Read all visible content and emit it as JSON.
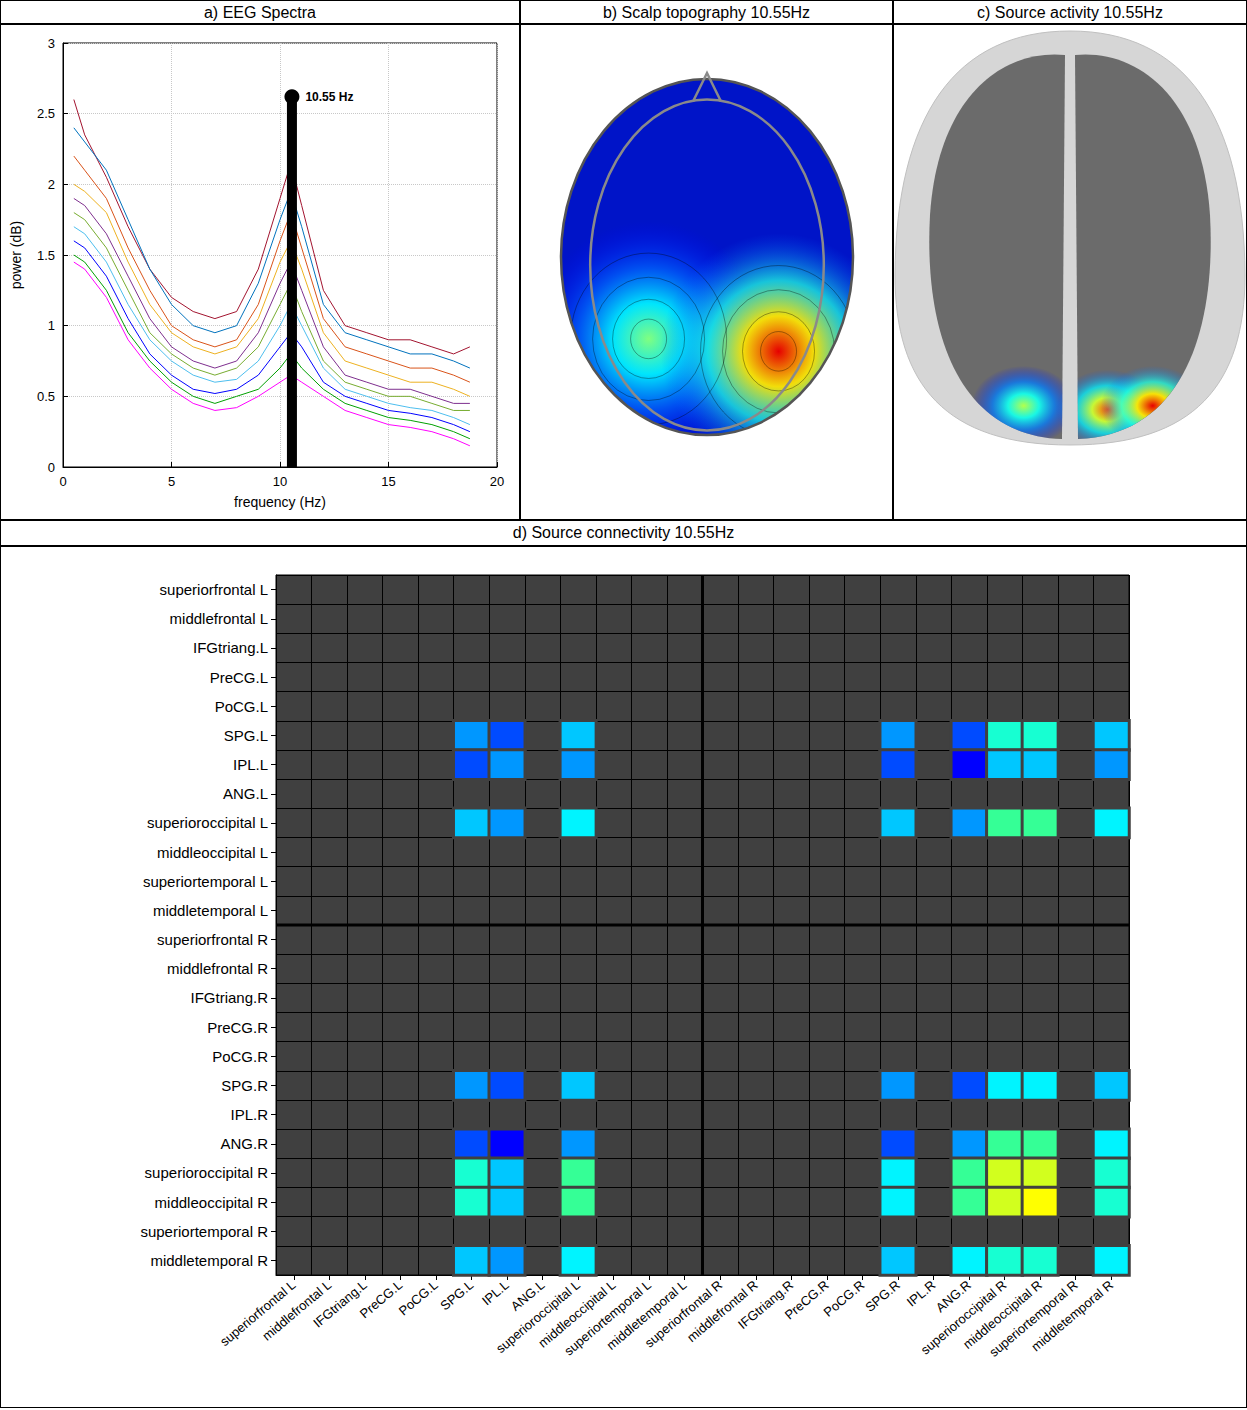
{
  "chart_data": [
    {
      "type": "line",
      "title": "a) EEG Spectra",
      "xlabel": "frequency (Hz)",
      "ylabel": "power (dB)",
      "x": [
        0.5,
        1,
        2,
        3,
        4,
        5,
        6,
        7,
        8,
        9,
        10,
        10.5,
        11,
        12,
        13,
        14,
        15,
        16,
        17,
        18,
        18.75
      ],
      "series": [
        {
          "color": "#a2142f",
          "values": [
            2.6,
            2.35,
            2.05,
            1.7,
            1.4,
            1.2,
            1.1,
            1.05,
            1.1,
            1.4,
            1.9,
            2.15,
            1.85,
            1.25,
            1.0,
            0.95,
            0.9,
            0.9,
            0.85,
            0.8,
            0.85
          ]
        },
        {
          "color": "#0072bd",
          "values": [
            2.4,
            2.3,
            2.1,
            1.75,
            1.4,
            1.15,
            1.0,
            0.95,
            1.0,
            1.3,
            1.75,
            1.95,
            1.7,
            1.15,
            0.95,
            0.9,
            0.85,
            0.8,
            0.8,
            0.75,
            0.7
          ]
        },
        {
          "color": "#d95319",
          "values": [
            2.2,
            2.1,
            1.9,
            1.55,
            1.25,
            1.0,
            0.9,
            0.85,
            0.9,
            1.15,
            1.6,
            1.8,
            1.55,
            1.05,
            0.85,
            0.8,
            0.75,
            0.7,
            0.7,
            0.65,
            0.6
          ]
        },
        {
          "color": "#edb120",
          "values": [
            2.0,
            1.95,
            1.8,
            1.45,
            1.15,
            0.95,
            0.85,
            0.8,
            0.85,
            1.05,
            1.45,
            1.6,
            1.4,
            0.95,
            0.75,
            0.7,
            0.65,
            0.6,
            0.6,
            0.55,
            0.5
          ]
        },
        {
          "color": "#7e2f8e",
          "values": [
            1.9,
            1.85,
            1.65,
            1.35,
            1.05,
            0.85,
            0.75,
            0.7,
            0.75,
            0.95,
            1.3,
            1.45,
            1.25,
            0.85,
            0.65,
            0.6,
            0.55,
            0.55,
            0.5,
            0.45,
            0.45
          ]
        },
        {
          "color": "#77ac30",
          "values": [
            1.8,
            1.75,
            1.55,
            1.25,
            0.95,
            0.8,
            0.7,
            0.65,
            0.7,
            0.85,
            1.15,
            1.3,
            1.1,
            0.75,
            0.6,
            0.55,
            0.5,
            0.5,
            0.45,
            0.4,
            0.4
          ]
        },
        {
          "color": "#4dbeee",
          "values": [
            1.7,
            1.65,
            1.45,
            1.15,
            0.9,
            0.75,
            0.65,
            0.6,
            0.62,
            0.75,
            1.0,
            1.15,
            1.0,
            0.7,
            0.55,
            0.5,
            0.45,
            0.42,
            0.4,
            0.35,
            0.3
          ]
        },
        {
          "color": "#0000ff",
          "values": [
            1.6,
            1.55,
            1.35,
            1.05,
            0.8,
            0.65,
            0.55,
            0.52,
            0.55,
            0.65,
            0.85,
            0.95,
            0.85,
            0.6,
            0.5,
            0.45,
            0.4,
            0.38,
            0.35,
            0.3,
            0.25
          ]
        },
        {
          "color": "#00a000",
          "values": [
            1.5,
            1.45,
            1.25,
            0.95,
            0.75,
            0.6,
            0.5,
            0.45,
            0.5,
            0.55,
            0.7,
            0.8,
            0.7,
            0.55,
            0.45,
            0.4,
            0.35,
            0.33,
            0.3,
            0.25,
            0.2
          ]
        },
        {
          "color": "#ff00ff",
          "values": [
            1.45,
            1.4,
            1.2,
            0.9,
            0.7,
            0.55,
            0.45,
            0.4,
            0.42,
            0.5,
            0.6,
            0.65,
            0.6,
            0.5,
            0.4,
            0.35,
            0.3,
            0.28,
            0.25,
            0.2,
            0.15
          ]
        }
      ],
      "xlim": [
        0,
        20
      ],
      "xticks": [
        0,
        5,
        10,
        15,
        20
      ],
      "ylim": [
        0,
        3
      ],
      "yticks": [
        0,
        0.5,
        1,
        1.5,
        2,
        2.5,
        3
      ],
      "grid": true,
      "annotations": [
        {
          "x": 10.55,
          "y": 2.62,
          "label": "10.55 Hz"
        }
      ]
    },
    {
      "type": "heatmap",
      "title": "d) Source connectivity 10.55Hz",
      "categories": [
        "superiorfrontal L",
        "middlefrontal L",
        "IFGtriang.L",
        "PreCG.L",
        "PoCG.L",
        "SPG.L",
        "IPL.L",
        "ANG.L",
        "superioroccipital L",
        "middleoccipital L",
        "superiortemporal L",
        "middletemporal L",
        "superiorfrontal R",
        "middlefrontal R",
        "IFGtriang.R",
        "PreCG.R",
        "PoCG.R",
        "SPG.R",
        "IPL.R",
        "ANG.R",
        "superioroccipital R",
        "middleoccipital R",
        "superiortemporal R",
        "middletemporal R"
      ],
      "cells": {
        "regions": [
          "SPG.L",
          "IPL.L",
          "superioroccipital L",
          "SPG.R",
          "ANG.R",
          "superioroccipital R",
          "middleoccipital R",
          "middletemporal R"
        ],
        "values": [
          [
            0.3,
            0.2,
            0.4,
            0.3,
            0.2,
            0.6,
            0.6,
            0.4
          ],
          [
            0.2,
            0.3,
            0.3,
            0.2,
            0.1,
            0.4,
            0.4,
            0.3
          ],
          [
            0.4,
            0.3,
            0.5,
            0.4,
            0.3,
            0.7,
            0.7,
            0.5
          ],
          [
            0.3,
            0.2,
            0.4,
            0.3,
            0.2,
            0.5,
            0.5,
            0.4
          ],
          [
            0.2,
            0.1,
            0.3,
            0.2,
            0.3,
            0.7,
            0.7,
            0.5
          ],
          [
            0.6,
            0.4,
            0.7,
            0.5,
            0.7,
            0.9,
            0.9,
            0.6
          ],
          [
            0.6,
            0.4,
            0.7,
            0.5,
            0.7,
            0.9,
            0.95,
            0.6
          ],
          [
            0.4,
            0.3,
            0.5,
            0.4,
            0.5,
            0.6,
            0.6,
            0.5
          ]
        ]
      }
    }
  ],
  "topography": {
    "title": "b) Scalp topography 10.55Hz",
    "peaks": [
      {
        "x": -0.4,
        "y": -0.46,
        "value": 0.5
      },
      {
        "x": 0.49,
        "y": -0.53,
        "value": 0.9
      }
    ]
  },
  "source_activity": {
    "title": "c) Source activity 10.55Hz",
    "peaks": [
      {
        "x": -0.32,
        "y": -0.82,
        "value": 0.55
      },
      {
        "x": 0.26,
        "y": -0.84,
        "value": 0.8
      },
      {
        "x": 0.57,
        "y": -0.82,
        "value": 0.9
      }
    ]
  }
}
